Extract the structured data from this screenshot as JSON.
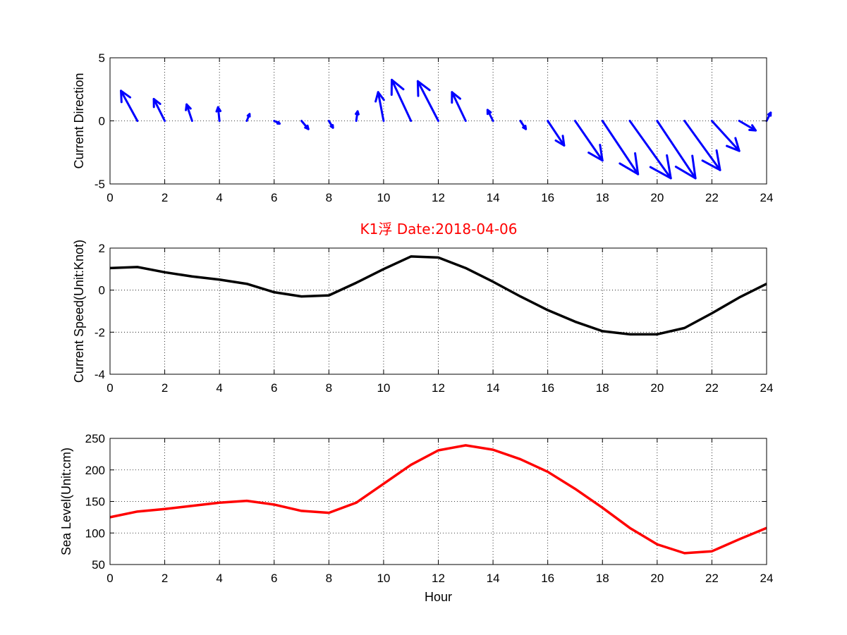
{
  "title": "K1浮   Date:2018-04-06",
  "chart_data": [
    {
      "type": "quiver",
      "ylabel": "Current Direction",
      "xlabel": "",
      "xlim": [
        0,
        24
      ],
      "ylim": [
        -5,
        5
      ],
      "xticks": [
        0,
        2,
        4,
        6,
        8,
        10,
        12,
        14,
        16,
        18,
        20,
        22,
        24
      ],
      "yticks": [
        -5,
        0,
        5
      ],
      "grid": true,
      "color": "#0000ff",
      "x": [
        0,
        1,
        2,
        3,
        4,
        5,
        6,
        7,
        8,
        9,
        10,
        11,
        12,
        13,
        14,
        15,
        16,
        17,
        18,
        19,
        20,
        21,
        22,
        23,
        24
      ],
      "u": [
        0,
        -0.6,
        -0.4,
        -0.2,
        -0.05,
        0.1,
        0.2,
        0.25,
        0.15,
        0.05,
        -0.2,
        -0.7,
        -0.75,
        -0.5,
        -0.2,
        0.2,
        0.6,
        1.0,
        1.3,
        1.5,
        1.4,
        1.3,
        1.0,
        0.6,
        0.15
      ],
      "v": [
        0,
        1.1,
        0.8,
        0.6,
        0.5,
        0.25,
        -0.1,
        -0.3,
        -0.25,
        0.35,
        1.05,
        1.5,
        1.45,
        1.05,
        0.4,
        -0.3,
        -0.9,
        -1.45,
        -1.95,
        -2.1,
        -2.1,
        -1.8,
        -1.1,
        -0.35,
        0.3
      ]
    },
    {
      "type": "line",
      "ylabel": "Current Speed(Unit:Knot)",
      "xlabel": "",
      "xlim": [
        0,
        24
      ],
      "ylim": [
        -4,
        2
      ],
      "xticks": [
        0,
        2,
        4,
        6,
        8,
        10,
        12,
        14,
        16,
        18,
        20,
        22,
        24
      ],
      "yticks": [
        -4,
        -2,
        0,
        2
      ],
      "grid": true,
      "series": [
        {
          "color": "#000000",
          "x": [
            0,
            1,
            2,
            3,
            4,
            5,
            6,
            7,
            8,
            9,
            10,
            11,
            12,
            13,
            14,
            15,
            16,
            17,
            18,
            19,
            20,
            21,
            22,
            23,
            24
          ],
          "values": [
            1.05,
            1.1,
            0.85,
            0.65,
            0.5,
            0.3,
            -0.1,
            -0.3,
            -0.25,
            0.35,
            1.0,
            1.6,
            1.55,
            1.05,
            0.4,
            -0.3,
            -0.95,
            -1.5,
            -1.95,
            -2.1,
            -2.1,
            -1.8,
            -1.1,
            -0.35,
            0.3
          ]
        }
      ]
    },
    {
      "type": "line",
      "ylabel": "Sea Level(Unit:cm)",
      "xlabel": "Hour",
      "xlim": [
        0,
        24
      ],
      "ylim": [
        50,
        250
      ],
      "xticks": [
        0,
        2,
        4,
        6,
        8,
        10,
        12,
        14,
        16,
        18,
        20,
        22,
        24
      ],
      "yticks": [
        50,
        100,
        150,
        200,
        250
      ],
      "grid": true,
      "series": [
        {
          "color": "#ff0000",
          "x": [
            0,
            1,
            2,
            3,
            4,
            5,
            6,
            7,
            8,
            9,
            10,
            11,
            12,
            13,
            14,
            15,
            16,
            17,
            18,
            19,
            20,
            21,
            22,
            23,
            24
          ],
          "values": [
            125,
            134,
            138,
            143,
            148,
            151,
            145,
            135,
            132,
            148,
            178,
            208,
            231,
            239,
            232,
            217,
            197,
            170,
            140,
            108,
            82,
            68,
            71,
            90,
            108
          ]
        }
      ]
    }
  ]
}
